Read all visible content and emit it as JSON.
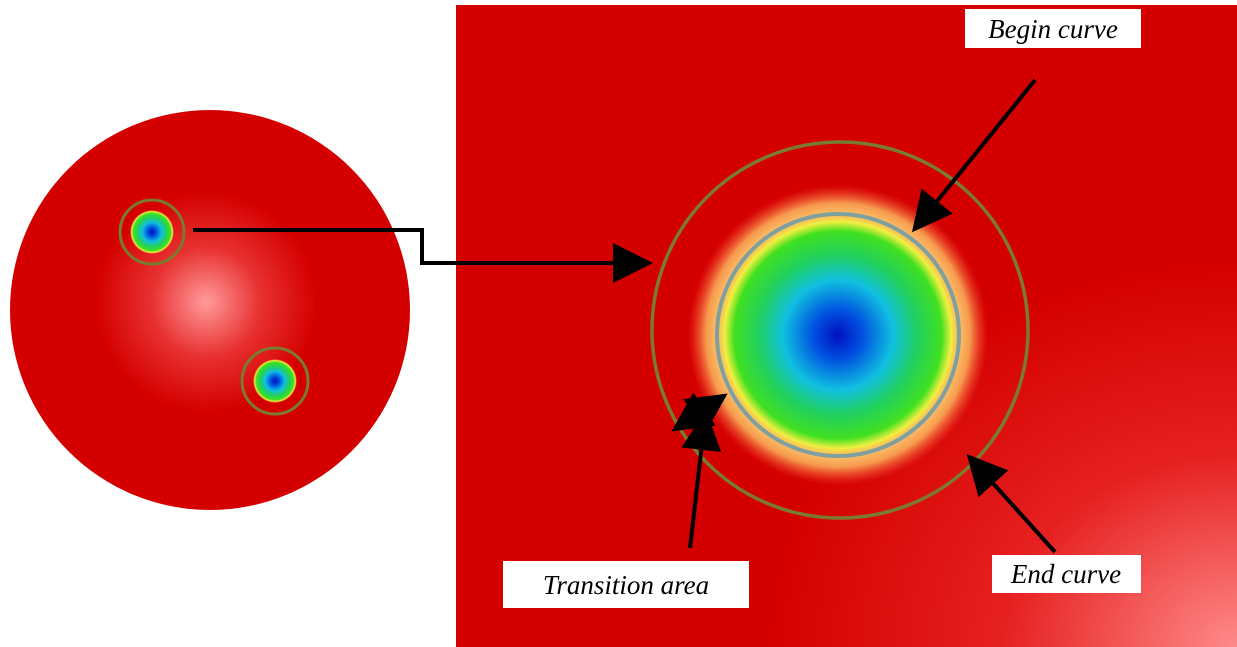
{
  "labels": {
    "begin_curve": "Begin curve",
    "transition_area": "Transition area",
    "end_curve": "End curve"
  }
}
